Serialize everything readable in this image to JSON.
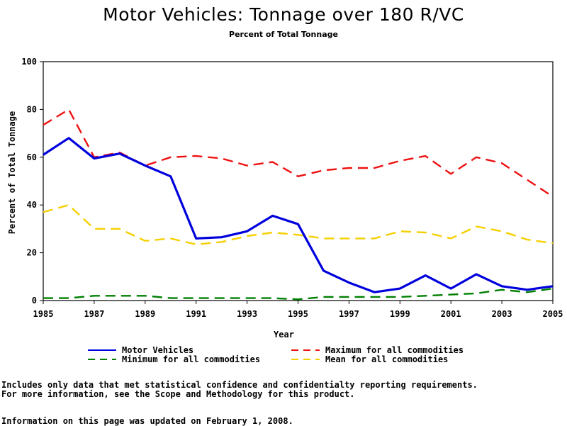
{
  "chart_data": {
    "type": "line",
    "title": "Motor Vehicles: Tonnage over 180 R/VC",
    "subtitle": "Percent of Total Tonnage",
    "xlabel": "Year",
    "ylabel": "Percent of Total Tonnage",
    "xlim": [
      1985,
      2005
    ],
    "ylim": [
      0,
      100
    ],
    "x_ticks": [
      "1985",
      "1987",
      "1989",
      "1991",
      "1993",
      "1995",
      "1997",
      "1999",
      "2001",
      "2003",
      "2005"
    ],
    "y_ticks": [
      "0",
      "20",
      "40",
      "60",
      "80",
      "100"
    ],
    "x": [
      1985,
      1986,
      1987,
      1988,
      1989,
      1990,
      1991,
      1992,
      1993,
      1994,
      1995,
      1996,
      1997,
      1998,
      1999,
      2000,
      2001,
      2002,
      2003,
      2004,
      2005
    ],
    "series": [
      {
        "name": "Motor Vehicles",
        "color": "#0000dd",
        "dash": "solid",
        "values": [
          61,
          68,
          59.5,
          61.5,
          56.5,
          52,
          26,
          26.5,
          29,
          35.5,
          32,
          12.5,
          7.5,
          3.5,
          5,
          10.5,
          5,
          11,
          6,
          4.5,
          6
        ]
      },
      {
        "name": "Maximum for all commodities",
        "color": "#ee1111",
        "dash": "dashed",
        "values": [
          73.5,
          80,
          60,
          62,
          56.5,
          60,
          60.5,
          59.5,
          56.5,
          58,
          52,
          54.5,
          55.5,
          55.5,
          58.5,
          60.5,
          53,
          60,
          57.5,
          50.5,
          43.5
        ]
      },
      {
        "name": "Minimum for all commodities",
        "color": "#008000",
        "dash": "dashed",
        "values": [
          1,
          1,
          2,
          2,
          2,
          1,
          1,
          1,
          1,
          1,
          0.5,
          1.5,
          1.5,
          1.5,
          1.5,
          2,
          2.5,
          3,
          4.5,
          3.5,
          5
        ]
      },
      {
        "name": "Mean for all commodities",
        "color": "#f5d000",
        "dash": "dashed",
        "values": [
          37,
          40,
          30,
          30,
          25,
          26,
          23.5,
          24.5,
          27,
          28.5,
          27.5,
          26,
          26,
          26,
          29,
          28.5,
          26,
          31,
          29,
          25.5,
          24
        ]
      }
    ],
    "legend_position": "bottom",
    "grid": false
  },
  "footnotes": {
    "line1": "Includes only data that met statistical confidence and confidentialty reporting requirements.",
    "line2": "For more information, see the Scope and Methodology for this product.",
    "updated": "Information on this page was updated on February 1, 2008."
  }
}
